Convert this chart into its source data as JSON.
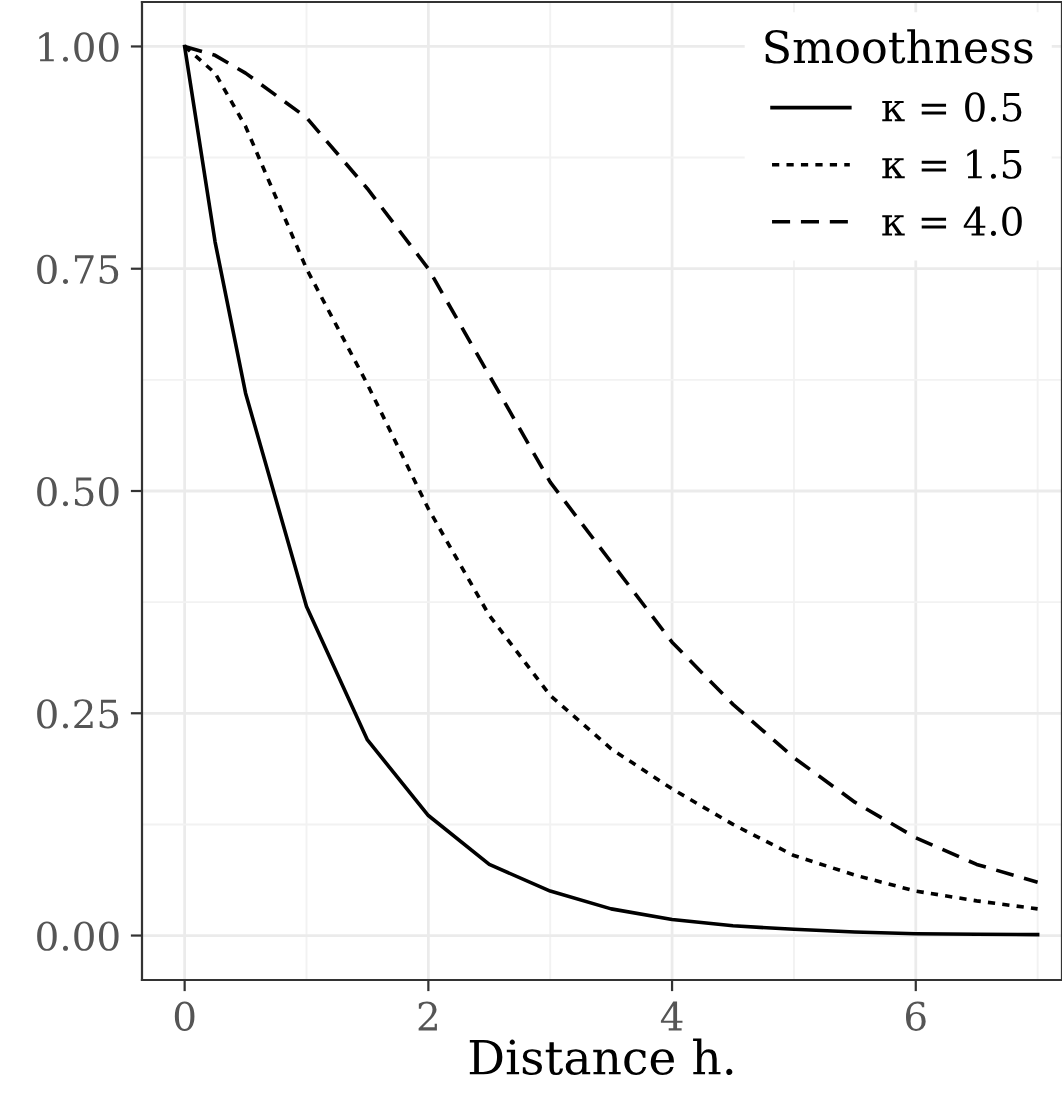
{
  "chart_data": {
    "type": "line",
    "xlabel": "Distance h.",
    "legend_title": "Smoothness",
    "legend": "top right",
    "grid": true,
    "xlim": [
      -0.35,
      7.2
    ],
    "ylim": [
      -0.05,
      1.05
    ],
    "xticks": [
      0,
      2,
      4,
      6
    ],
    "yticks": [
      {
        "value": 0,
        "label": "0.00"
      },
      {
        "value": 0.25,
        "label": "0.25"
      },
      {
        "value": 0.5,
        "label": "0.50"
      },
      {
        "value": 0.75,
        "label": "0.75"
      },
      {
        "value": 1,
        "label": "1.00"
      }
    ],
    "x": [
      0,
      0.25,
      0.5,
      1,
      1.5,
      2,
      2.5,
      3,
      3.5,
      4,
      4.5,
      5,
      5.5,
      6,
      6.5,
      7
    ],
    "series": [
      {
        "name": "κ = 0.5",
        "color": "#000000",
        "line_style": "solid",
        "values": [
          1,
          0.78,
          0.61,
          0.37,
          0.22,
          0.135,
          0.08,
          0.05,
          0.03,
          0.018,
          0.011,
          0.007,
          0.004,
          0.002,
          0.0015,
          0.001
        ]
      },
      {
        "name": "κ = 1.5",
        "color": "#000000",
        "line_style": "dotted",
        "values": [
          1,
          0.97,
          0.91,
          0.75,
          0.62,
          0.48,
          0.36,
          0.27,
          0.21,
          0.165,
          0.125,
          0.09,
          0.068,
          0.05,
          0.039,
          0.03
        ]
      },
      {
        "name": "κ = 4.0",
        "color": "#000000",
        "line_style": "dashed",
        "values": [
          1,
          0.99,
          0.97,
          0.92,
          0.84,
          0.75,
          0.63,
          0.51,
          0.42,
          0.33,
          0.26,
          0.2,
          0.15,
          0.11,
          0.08,
          0.06
        ]
      }
    ]
  }
}
